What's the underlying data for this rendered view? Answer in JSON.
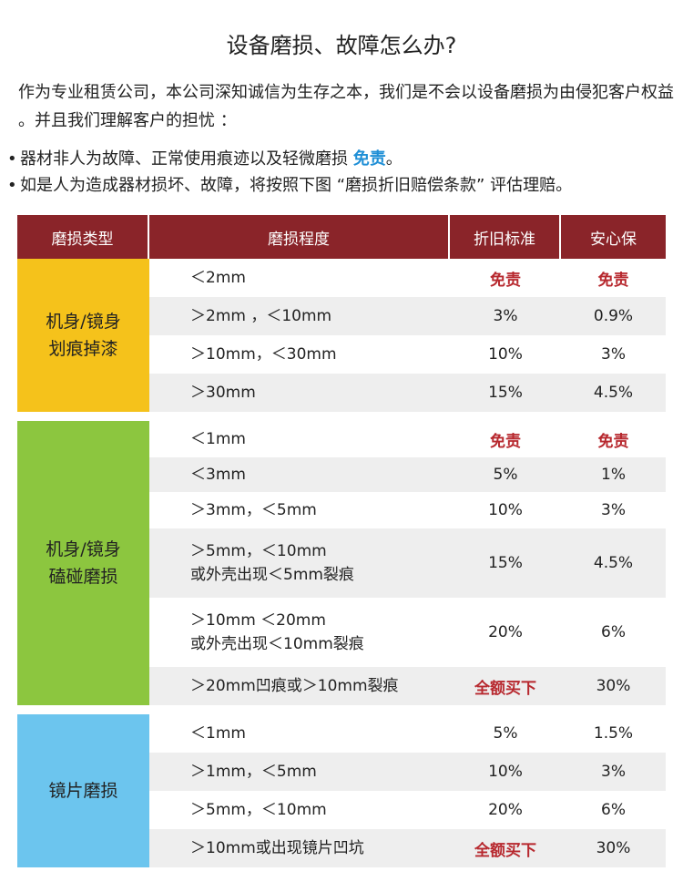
{
  "title": "设备磨损、故障怎么办?",
  "intro": "作为专业租赁公司，本公司深知诚信为生存之本，我们是不会以设备磨损为由侵犯客户权益 。并且我们理解客户的担忧 ：",
  "bullets": [
    {
      "prefix": "器材非人为故障、正常使用痕迹以及轻微磨损 ",
      "highlight": "免责",
      "suffix": "。"
    },
    {
      "prefix": "如是人为造成器材损坏、故障，将按照下图 “磨损折旧赔偿条款” 评估理赔。",
      "highlight": "",
      "suffix": ""
    }
  ],
  "table": {
    "headers": [
      "磨损类型",
      "磨损程度",
      "折旧标准",
      "安心保"
    ],
    "groups": [
      {
        "type": "机身/镜身\n划痕掉漆",
        "color": "#f5c21b",
        "rows": [
          {
            "degree": "＜2mm",
            "std": "免责",
            "insure": "免责"
          },
          {
            "degree": "＞2mm ，＜10mm",
            "std": "3%",
            "insure": "0.9%"
          },
          {
            "degree": "＞10mm，＜30mm",
            "std": "10%",
            "insure": "3%"
          },
          {
            "degree": "＞30mm",
            "std": "15%",
            "insure": "4.5%"
          }
        ]
      },
      {
        "type": "机身/镜身\n磕碰磨损",
        "color": "#8cc63f",
        "rows": [
          {
            "degree": "＜1mm",
            "std": "免责",
            "insure": "免责"
          },
          {
            "degree": "＜3mm",
            "std": "5%",
            "insure": "1%"
          },
          {
            "degree": "＞3mm，＜5mm",
            "std": "10%",
            "insure": "3%"
          },
          {
            "degree": "＞5mm，＜10mm\n或外壳出现＜5mm裂痕",
            "std": "15%",
            "insure": "4.5%"
          },
          {
            "degree": "＞10mm ＜20mm\n或外壳出现＜10mm裂痕",
            "std": "20%",
            "insure": "6%"
          },
          {
            "degree": "＞20mm凹痕或＞10mm裂痕",
            "std": "全额买下",
            "insure": "30%"
          }
        ]
      },
      {
        "type": "镜片磨损",
        "color": "#6cc5ee",
        "rows": [
          {
            "degree": "＜1mm",
            "std": "5%",
            "insure": "1.5%"
          },
          {
            "degree": "＞1mm，＜5mm",
            "std": "10%",
            "insure": "3%"
          },
          {
            "degree": "＞5mm，＜10mm",
            "std": "20%",
            "insure": "6%"
          },
          {
            "degree": "＞10mm或出现镜片凹坑",
            "std": "全额买下",
            "insure": "30%"
          }
        ]
      }
    ]
  },
  "colors": {
    "header": "#8a2429",
    "red_text": "#b7282e",
    "highlight": "#1f8fd6"
  }
}
